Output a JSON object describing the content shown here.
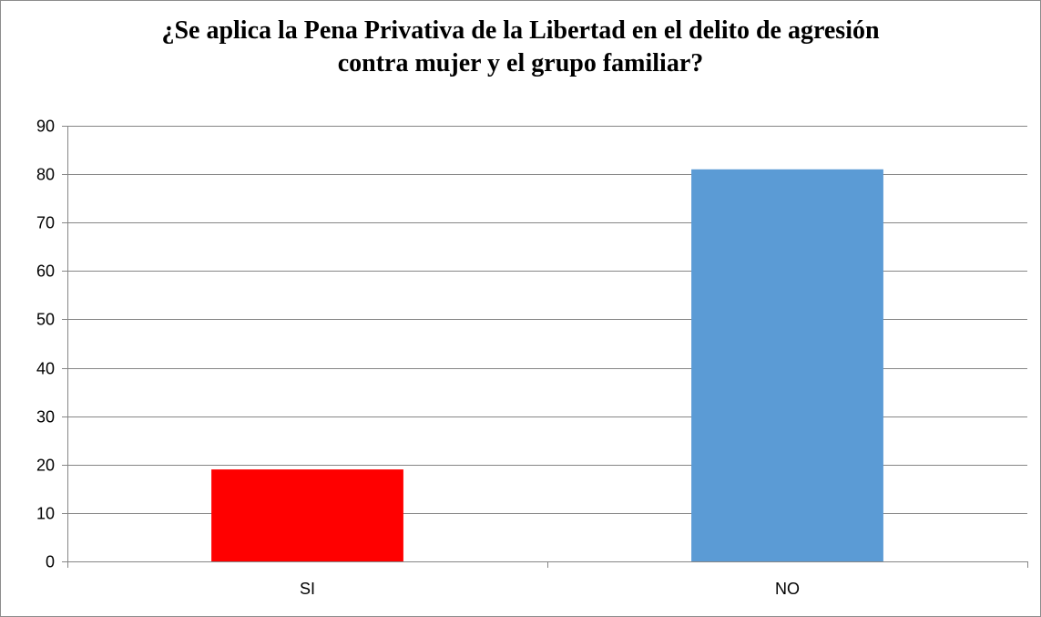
{
  "chart_data": {
    "type": "bar",
    "title_lines": [
      "¿Se aplica la Pena Privativa de la Libertad en el delito de agresión",
      "contra mujer y el grupo familiar?"
    ],
    "categories": [
      "SI",
      "NO"
    ],
    "values": [
      19,
      81
    ],
    "bar_colors": [
      "#ff0000",
      "#5b9bd5"
    ],
    "ylim": [
      0,
      90
    ],
    "yticks": [
      0,
      10,
      20,
      30,
      40,
      50,
      60,
      70,
      80,
      90
    ],
    "grid": true,
    "legend": "none",
    "xlabel": "",
    "ylabel": ""
  }
}
